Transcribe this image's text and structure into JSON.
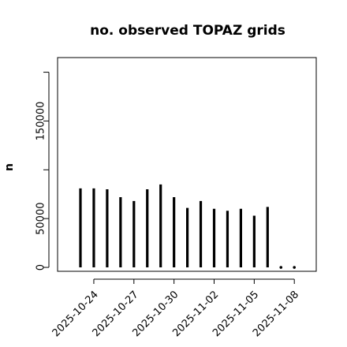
{
  "chart_data": {
    "type": "bar",
    "title": "no. observed TOPAZ grids",
    "xlabel": "",
    "ylabel": "n",
    "ylim": [
      -4000,
      215000
    ],
    "y_ticks": [
      0,
      50000,
      150000
    ],
    "y_tick_labels": [
      "0",
      "50000",
      "150000"
    ],
    "y_minor_ticks": [
      100000,
      200000
    ],
    "dates": [
      "2025-10-23",
      "2025-10-24",
      "2025-10-25",
      "2025-10-26",
      "2025-10-27",
      "2025-10-28",
      "2025-10-29",
      "2025-10-30",
      "2025-10-31",
      "2025-11-01",
      "2025-11-02",
      "2025-11-03",
      "2025-11-04",
      "2025-11-05",
      "2025-11-06",
      "2025-11-07",
      "2025-11-08"
    ],
    "values": [
      81000,
      81000,
      80000,
      72000,
      68000,
      80000,
      85000,
      72000,
      61000,
      68000,
      60000,
      58000,
      60000,
      53000,
      62000,
      0,
      0
    ],
    "x_tick_labels": [
      "2025-10-24",
      "2025-10-27",
      "2025-10-30",
      "2025-11-02",
      "2025-11-05",
      "2025-11-08"
    ],
    "x_tick_label_colors": [
      "#000000",
      "#000000",
      "#228b22",
      "#000000",
      "#000000",
      "#000000"
    ],
    "bar_color": "#000000",
    "grid": false,
    "legend": "none"
  }
}
